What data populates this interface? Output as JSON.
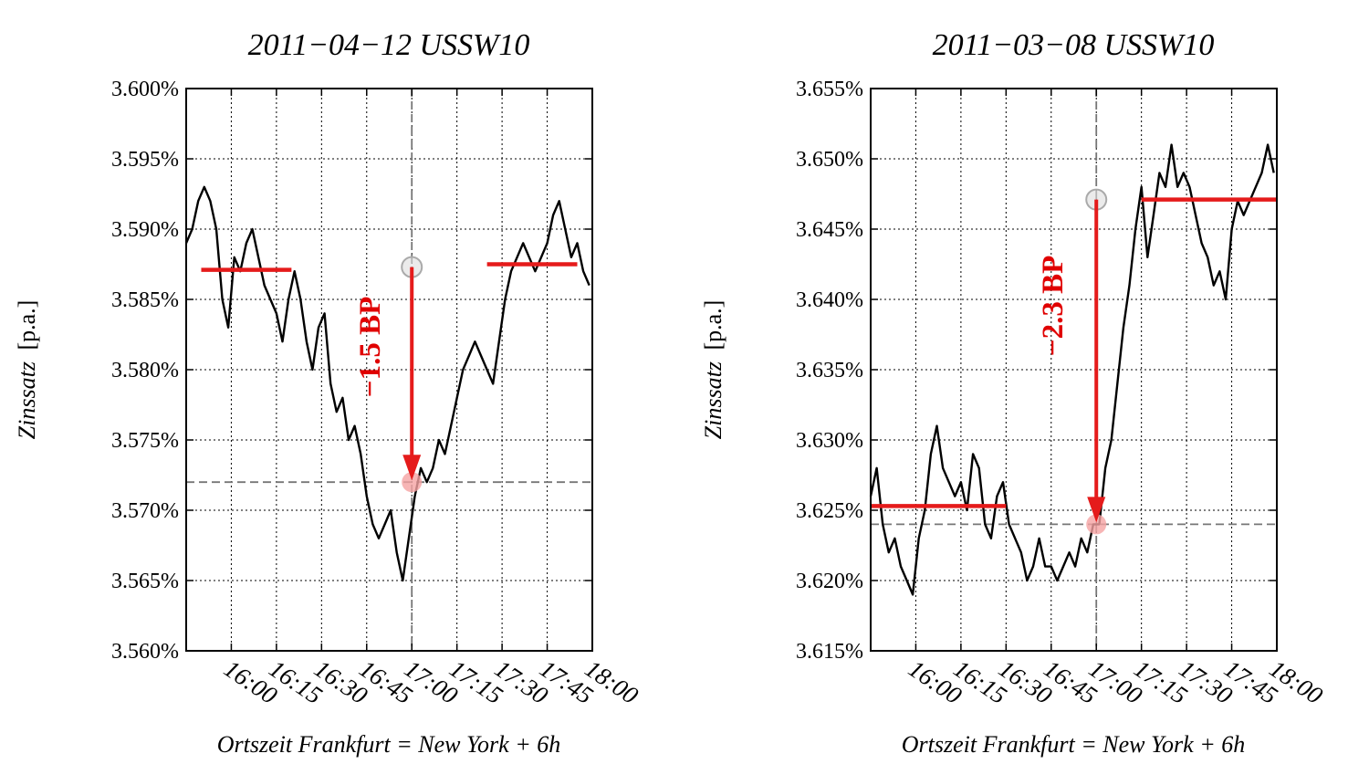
{
  "chart_data": [
    {
      "type": "line",
      "title": "2011−04−12 USSW10",
      "xlabel": "Ortszeit Frankfurt = New York + 6h",
      "ylabel_main": "Zinssatz",
      "ylabel_unit": "[p.a.]",
      "xlim": [
        "15:45",
        "18:00"
      ],
      "ylim": [
        3.56,
        3.6
      ],
      "yticks": [
        3.56,
        3.565,
        3.57,
        3.575,
        3.58,
        3.585,
        3.59,
        3.595,
        3.6
      ],
      "ytick_labels": [
        "3.560%",
        "3.565%",
        "3.570%",
        "3.575%",
        "3.580%",
        "3.585%",
        "3.590%",
        "3.595%",
        "3.600%"
      ],
      "xtick_labels": [
        "16:00",
        "16:15",
        "16:30",
        "16:45",
        "17:00",
        "17:15",
        "17:30",
        "17:45",
        "18:00"
      ],
      "event_time": "17:00",
      "grid": true,
      "series": [
        {
          "x": [
            "15:45",
            "15:47",
            "15:49",
            "15:51",
            "15:53",
            "15:55",
            "15:57",
            "15:59",
            "16:01",
            "16:03",
            "16:05",
            "16:07",
            "16:09",
            "16:11",
            "16:13",
            "16:15",
            "16:17",
            "16:19",
            "16:21",
            "16:23",
            "16:25",
            "16:27",
            "16:29",
            "16:31",
            "16:33",
            "16:35",
            "16:37",
            "16:39",
            "16:41",
            "16:43",
            "16:45",
            "16:47",
            "16:49",
            "16:51",
            "16:53",
            "16:55",
            "16:57",
            "16:59",
            "17:01",
            "17:03",
            "17:05",
            "17:07",
            "17:09",
            "17:11",
            "17:13",
            "17:15",
            "17:17",
            "17:19",
            "17:21",
            "17:23",
            "17:25",
            "17:27",
            "17:29",
            "17:31",
            "17:33",
            "17:35",
            "17:37",
            "17:39",
            "17:41",
            "17:43",
            "17:45",
            "17:47",
            "17:49",
            "17:51",
            "17:53",
            "17:55",
            "17:57",
            "17:59"
          ],
          "y": [
            3.589,
            3.59,
            3.592,
            3.593,
            3.592,
            3.59,
            3.585,
            3.583,
            3.588,
            3.587,
            3.589,
            3.59,
            3.588,
            3.586,
            3.585,
            3.584,
            3.582,
            3.585,
            3.587,
            3.585,
            3.582,
            3.58,
            3.583,
            3.584,
            3.579,
            3.577,
            3.578,
            3.575,
            3.576,
            3.574,
            3.571,
            3.569,
            3.568,
            3.569,
            3.57,
            3.567,
            3.565,
            3.568,
            3.571,
            3.573,
            3.572,
            3.573,
            3.575,
            3.574,
            3.576,
            3.578,
            3.58,
            3.581,
            3.582,
            3.581,
            3.58,
            3.579,
            3.582,
            3.585,
            3.587,
            3.588,
            3.589,
            3.588,
            3.587,
            3.588,
            3.589,
            3.591,
            3.592,
            3.59,
            3.588,
            3.589,
            3.587,
            3.586
          ]
        }
      ],
      "levels": [
        {
          "from": "15:50",
          "to": "16:20",
          "value": 3.5871
        },
        {
          "from": "17:25",
          "to": "17:55",
          "value": 3.5875
        }
      ],
      "reference_value": 3.572,
      "before_value": 3.5873,
      "after_value": 3.572,
      "annotation": "−1.5 BP"
    },
    {
      "type": "line",
      "title": "2011−03−08 USSW10",
      "xlabel": "Ortszeit Frankfurt = New York + 6h",
      "ylabel_main": "Zinssatz",
      "ylabel_unit": "[p.a.]",
      "xlim": [
        "15:45",
        "18:00"
      ],
      "ylim": [
        3.615,
        3.655
      ],
      "yticks": [
        3.615,
        3.62,
        3.625,
        3.63,
        3.635,
        3.64,
        3.645,
        3.65,
        3.655
      ],
      "ytick_labels": [
        "3.615%",
        "3.620%",
        "3.625%",
        "3.630%",
        "3.635%",
        "3.640%",
        "3.645%",
        "3.650%",
        "3.655%"
      ],
      "xtick_labels": [
        "16:00",
        "16:15",
        "16:30",
        "16:45",
        "17:00",
        "17:15",
        "17:30",
        "17:45",
        "18:00"
      ],
      "event_time": "17:00",
      "grid": true,
      "series": [
        {
          "x": [
            "15:45",
            "15:47",
            "15:49",
            "15:51",
            "15:53",
            "15:55",
            "15:57",
            "15:59",
            "16:01",
            "16:03",
            "16:05",
            "16:07",
            "16:09",
            "16:11",
            "16:13",
            "16:15",
            "16:17",
            "16:19",
            "16:21",
            "16:23",
            "16:25",
            "16:27",
            "16:29",
            "16:31",
            "16:33",
            "16:35",
            "16:37",
            "16:39",
            "16:41",
            "16:43",
            "16:45",
            "16:47",
            "16:49",
            "16:51",
            "16:53",
            "16:55",
            "16:57",
            "16:59",
            "17:01",
            "17:03",
            "17:05",
            "17:07",
            "17:09",
            "17:11",
            "17:13",
            "17:15",
            "17:17",
            "17:19",
            "17:21",
            "17:23",
            "17:25",
            "17:27",
            "17:29",
            "17:31",
            "17:33",
            "17:35",
            "17:37",
            "17:39",
            "17:41",
            "17:43",
            "17:45",
            "17:47",
            "17:49",
            "17:51",
            "17:53",
            "17:55",
            "17:57",
            "17:59"
          ],
          "y": [
            3.626,
            3.628,
            3.624,
            3.622,
            3.623,
            3.621,
            3.62,
            3.619,
            3.623,
            3.625,
            3.629,
            3.631,
            3.628,
            3.627,
            3.626,
            3.627,
            3.625,
            3.629,
            3.628,
            3.624,
            3.623,
            3.626,
            3.627,
            3.624,
            3.623,
            3.622,
            3.62,
            3.621,
            3.623,
            3.621,
            3.621,
            3.62,
            3.621,
            3.622,
            3.621,
            3.623,
            3.622,
            3.624,
            3.624,
            3.628,
            3.63,
            3.634,
            3.638,
            3.641,
            3.645,
            3.648,
            3.643,
            3.646,
            3.649,
            3.648,
            3.651,
            3.648,
            3.649,
            3.648,
            3.646,
            3.644,
            3.643,
            3.641,
            3.642,
            3.64,
            3.645,
            3.647,
            3.646,
            3.647,
            3.648,
            3.649,
            3.651,
            3.649
          ]
        }
      ],
      "levels": [
        {
          "from": "15:45",
          "to": "16:30",
          "value": 3.6253
        },
        {
          "from": "17:15",
          "to": "18:00",
          "value": 3.6471
        }
      ],
      "reference_value": 3.624,
      "before_value": 3.6471,
      "after_value": 3.624,
      "annotation": "−2.3 BP"
    }
  ]
}
